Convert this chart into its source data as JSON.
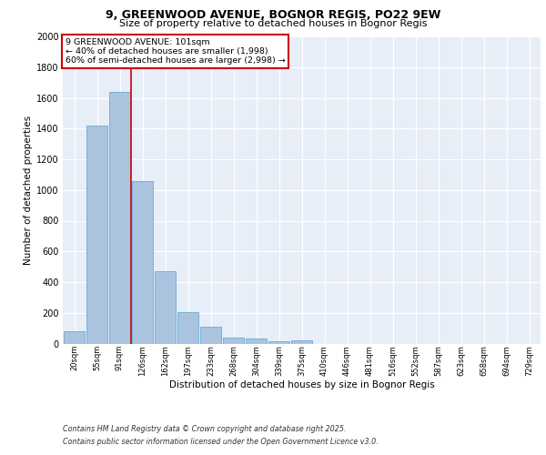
{
  "title1": "9, GREENWOOD AVENUE, BOGNOR REGIS, PO22 9EW",
  "title2": "Size of property relative to detached houses in Bognor Regis",
  "xlabel": "Distribution of detached houses by size in Bognor Regis",
  "ylabel": "Number of detached properties",
  "categories": [
    "20sqm",
    "55sqm",
    "91sqm",
    "126sqm",
    "162sqm",
    "197sqm",
    "233sqm",
    "268sqm",
    "304sqm",
    "339sqm",
    "375sqm",
    "410sqm",
    "446sqm",
    "481sqm",
    "516sqm",
    "552sqm",
    "587sqm",
    "623sqm",
    "658sqm",
    "694sqm",
    "729sqm"
  ],
  "values": [
    80,
    1420,
    1640,
    1060,
    470,
    205,
    110,
    40,
    30,
    15,
    20,
    0,
    0,
    0,
    0,
    0,
    0,
    0,
    0,
    0,
    0
  ],
  "bar_color": "#aac4e0",
  "bar_edge_color": "#6aaad4",
  "red_line_x": 2.5,
  "annotation_text": "9 GREENWOOD AVENUE: 101sqm\n← 40% of detached houses are smaller (1,998)\n60% of semi-detached houses are larger (2,998) →",
  "annotation_box_color": "#ffffff",
  "annotation_box_edge": "#cc0000",
  "footer1": "Contains HM Land Registry data © Crown copyright and database right 2025.",
  "footer2": "Contains public sector information licensed under the Open Government Licence v3.0.",
  "bg_color": "#e8eef8",
  "ylim": [
    0,
    2000
  ],
  "yticks": [
    0,
    200,
    400,
    600,
    800,
    1000,
    1200,
    1400,
    1600,
    1800,
    2000
  ]
}
